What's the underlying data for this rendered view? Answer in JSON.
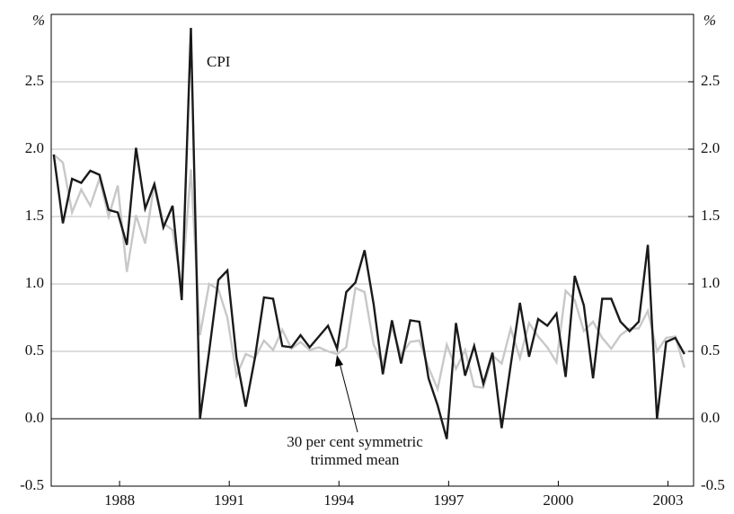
{
  "chart_data": {
    "type": "line",
    "y_label": "%",
    "y2_label": "%",
    "annotations": [
      "CPI",
      "30 per cent symmetric",
      "trimmed mean"
    ],
    "x": [
      1986.2,
      1986.45,
      1986.7,
      1986.95,
      1987.2,
      1987.45,
      1987.7,
      1987.95,
      1988.2,
      1988.45,
      1988.7,
      1988.95,
      1989.2,
      1989.45,
      1989.7,
      1989.95,
      1990.2,
      1990.45,
      1990.7,
      1990.95,
      1991.2,
      1991.45,
      1991.7,
      1991.95,
      1992.2,
      1992.45,
      1992.7,
      1992.95,
      1993.2,
      1993.45,
      1993.7,
      1993.95,
      1994.2,
      1994.45,
      1994.7,
      1994.95,
      1995.2,
      1995.45,
      1995.7,
      1995.95,
      1996.2,
      1996.45,
      1996.7,
      1996.95,
      1997.2,
      1997.45,
      1997.7,
      1997.95,
      1998.2,
      1998.45,
      1998.7,
      1998.95,
      1999.2,
      1999.45,
      1999.7,
      1999.95,
      2000.2,
      2000.45,
      2000.7,
      2000.95,
      2001.2,
      2001.45,
      2001.7,
      2001.95,
      2002.2,
      2002.45,
      2002.7,
      2002.95,
      2003.2,
      2003.45
    ],
    "series": [
      {
        "name": "CPI",
        "color": "#1a1a1a",
        "values": [
          1.96,
          1.45,
          1.78,
          1.75,
          1.84,
          1.81,
          1.55,
          1.53,
          1.29,
          2.01,
          1.56,
          1.74,
          1.42,
          1.58,
          0.88,
          2.9,
          0.0,
          0.5,
          1.03,
          1.1,
          0.45,
          0.09,
          0.45,
          0.9,
          0.89,
          0.54,
          0.53,
          0.62,
          0.53,
          0.61,
          0.69,
          0.52,
          0.94,
          1.01,
          1.25,
          0.85,
          0.33,
          0.73,
          0.41,
          0.73,
          0.72,
          0.3,
          0.1,
          -0.15,
          0.71,
          0.32,
          0.54,
          0.26,
          0.49,
          -0.07,
          0.4,
          0.86,
          0.46,
          0.74,
          0.69,
          0.78,
          0.31,
          1.06,
          0.84,
          0.3,
          0.89,
          0.89,
          0.72,
          0.65,
          0.72,
          1.29,
          0.0,
          0.57,
          0.6,
          0.48
        ]
      },
      {
        "name": "30 per cent symmetric trimmed mean",
        "color": "#c8c8c8",
        "values": [
          1.96,
          1.9,
          1.53,
          1.7,
          1.58,
          1.78,
          1.5,
          1.73,
          1.09,
          1.51,
          1.3,
          1.75,
          1.45,
          1.4,
          0.98,
          1.85,
          0.62,
          1.0,
          0.96,
          0.75,
          0.32,
          0.48,
          0.45,
          0.58,
          0.51,
          0.66,
          0.52,
          0.57,
          0.51,
          0.53,
          0.5,
          0.48,
          0.53,
          0.97,
          0.94,
          0.55,
          0.4,
          0.68,
          0.47,
          0.57,
          0.58,
          0.38,
          0.22,
          0.55,
          0.37,
          0.51,
          0.24,
          0.23,
          0.47,
          0.41,
          0.67,
          0.45,
          0.71,
          0.61,
          0.53,
          0.42,
          0.95,
          0.88,
          0.65,
          0.72,
          0.6,
          0.52,
          0.62,
          0.67,
          0.67,
          0.8,
          0.5,
          0.6,
          0.61,
          0.38
        ]
      }
    ],
    "xlim": [
      1986.13,
      2003.7
    ],
    "xticks": [
      1988,
      1991,
      1994,
      1997,
      2000,
      2003
    ],
    "ylim": [
      -0.5,
      3.0
    ],
    "yticks": [
      -0.5,
      {
        "value": 0,
        "label": "0.0"
      },
      0.5,
      {
        "value": 1,
        "label": "1.0"
      },
      1.5,
      {
        "value": 2,
        "label": "2.0"
      },
      2.5
    ],
    "y2lim": [
      -0.5,
      3.0
    ],
    "y2ticks": [
      -0.5,
      {
        "value": 0,
        "label": "0.0"
      },
      0.5,
      {
        "value": 1,
        "label": "1.0"
      },
      1.5,
      {
        "value": 2,
        "label": "2.0"
      },
      2.5
    ],
    "grid": true
  }
}
